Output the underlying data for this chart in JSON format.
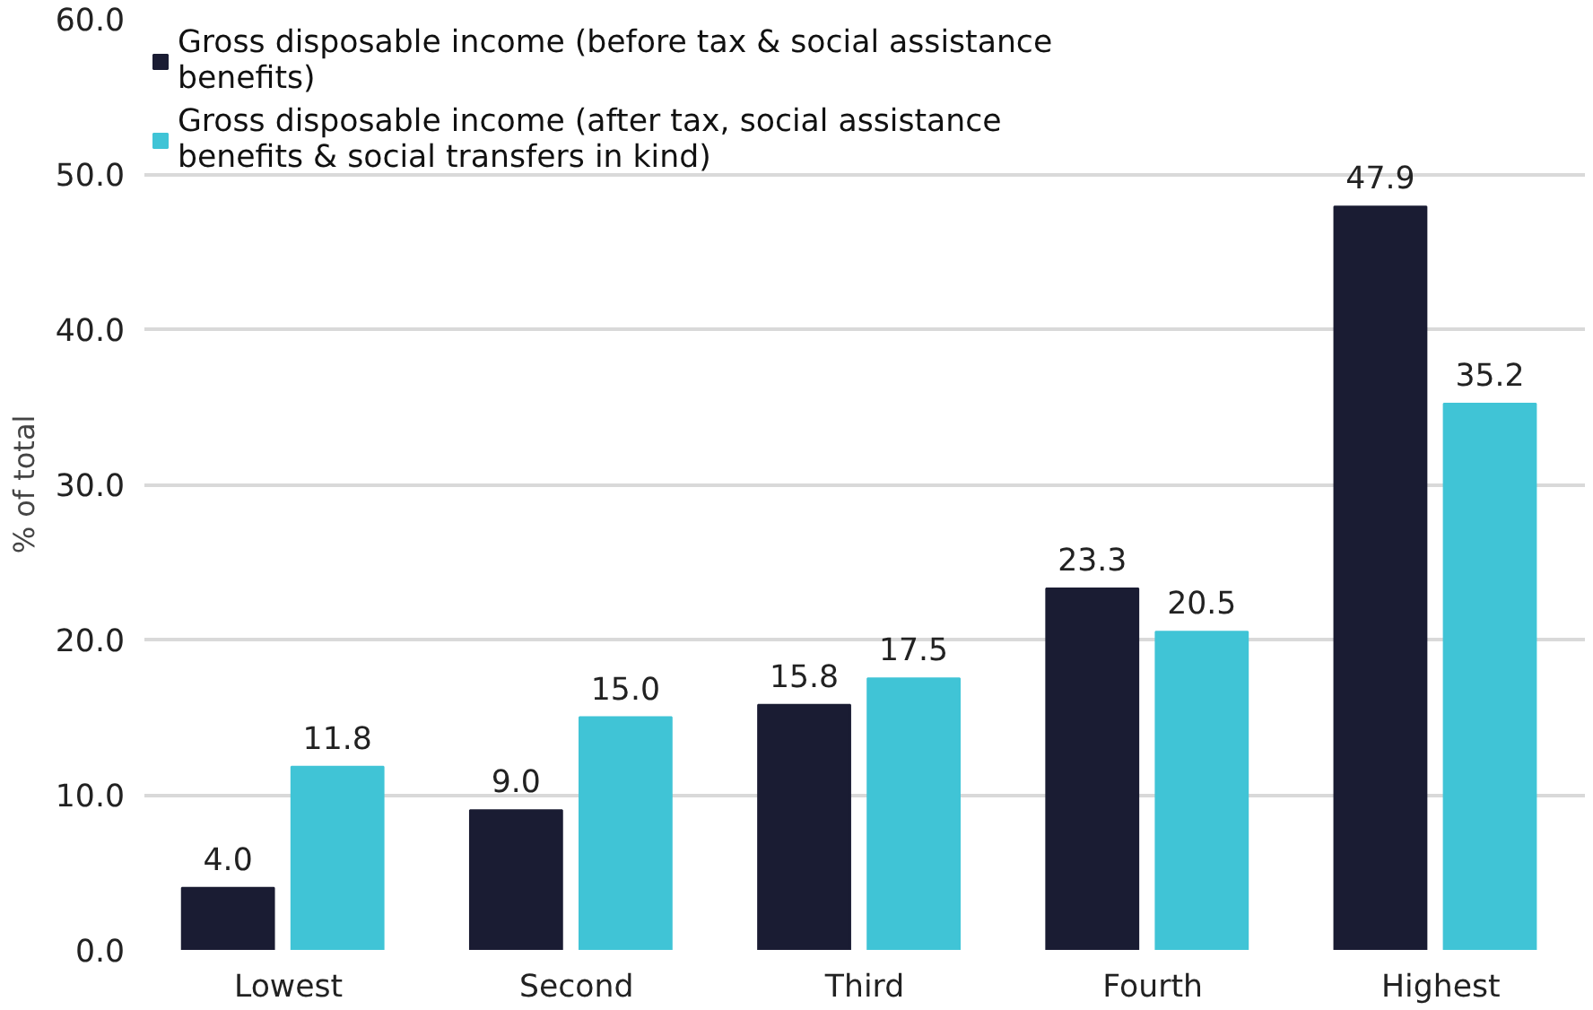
{
  "chart_data": {
    "type": "bar",
    "ylabel": "% of total",
    "categories": [
      "Lowest",
      "Second",
      "Third",
      "Fourth",
      "Highest"
    ],
    "series": [
      {
        "name": "Gross disposable income (before tax & social assistance benefits)",
        "color": "#1a1c33",
        "values": [
          4.0,
          9.0,
          15.8,
          23.3,
          47.9
        ],
        "value_labels": [
          "4.0",
          "9.0",
          "15.8",
          "23.3",
          "47.9"
        ]
      },
      {
        "name": "Gross disposable income (after tax, social assistance benefits & social transfers in kind)",
        "color": "#40c4d6",
        "values": [
          11.8,
          15.0,
          17.5,
          20.5,
          35.2
        ],
        "value_labels": [
          "11.8",
          "15.0",
          "17.5",
          "20.5",
          "35.2"
        ]
      }
    ],
    "ylim": [
      0,
      60
    ],
    "yticks": [
      {
        "value": 0,
        "label": "0.0"
      },
      {
        "value": 10,
        "label": "10.0"
      },
      {
        "value": 20,
        "label": "20.0"
      },
      {
        "value": 30,
        "label": "30.0"
      },
      {
        "value": 40,
        "label": "40.0"
      },
      {
        "value": 50,
        "label": "50.0"
      },
      {
        "value": 60,
        "label": "60.0"
      }
    ],
    "grid": "y",
    "legend": "top left"
  }
}
